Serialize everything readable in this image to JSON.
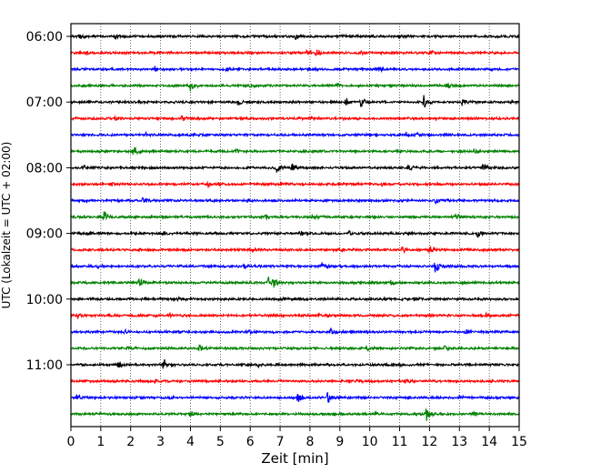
{
  "chart_data": {
    "type": "line",
    "xlabel": "Zeit  [min]",
    "ylabel": "UTC (Lokalzeit = UTC + 02:00)",
    "xlim": [
      0,
      15
    ],
    "x_ticks": [
      0,
      1,
      2,
      3,
      4,
      5,
      6,
      7,
      8,
      9,
      10,
      11,
      12,
      13,
      14,
      15
    ],
    "y_tick_labels": [
      "06:00",
      "07:00",
      "08:00",
      "09:00",
      "10:00",
      "11:00"
    ],
    "y_tick_rows": [
      0,
      4,
      8,
      12,
      16,
      20
    ],
    "grid": "x",
    "line_colors": [
      "#000000",
      "#ff0000",
      "#0000ff",
      "#008000"
    ],
    "traces": [
      {
        "start": "06:00",
        "events": [
          [
            0.3,
            0.3
          ],
          [
            1.5,
            0.3
          ],
          [
            7.5,
            0.4
          ],
          [
            9.1,
            0.3
          ],
          [
            11.0,
            0.3
          ]
        ]
      },
      {
        "start": "06:15",
        "events": [
          [
            0.5,
            0.3
          ],
          [
            7.9,
            0.6
          ],
          [
            8.2,
            0.6
          ],
          [
            9.7,
            0.3
          ],
          [
            12.0,
            0.3
          ]
        ]
      },
      {
        "start": "06:30",
        "events": [
          [
            2.8,
            0.3
          ],
          [
            5.2,
            0.2
          ],
          [
            10.3,
            0.3
          ]
        ]
      },
      {
        "start": "06:45",
        "events": [
          [
            4.0,
            1.0
          ],
          [
            6.0,
            0.3
          ],
          [
            8.9,
            0.3
          ],
          [
            12.6,
            0.3
          ]
        ]
      },
      {
        "start": "07:00",
        "events": [
          [
            5.6,
            0.7
          ],
          [
            9.2,
            0.6
          ],
          [
            9.7,
            0.7
          ],
          [
            11.8,
            0.9
          ],
          [
            13.1,
            0.5
          ]
        ]
      },
      {
        "start": "07:15",
        "events": [
          [
            1.5,
            0.3
          ],
          [
            3.7,
            0.4
          ],
          [
            8.0,
            0.2
          ]
        ]
      },
      {
        "start": "07:30",
        "events": [
          [
            2.5,
            0.2
          ],
          [
            11.2,
            0.4
          ],
          [
            11.6,
            0.3
          ]
        ]
      },
      {
        "start": "07:45",
        "events": [
          [
            2.1,
            0.9
          ],
          [
            5.5,
            0.3
          ],
          [
            13.5,
            0.3
          ]
        ]
      },
      {
        "start": "08:00",
        "events": [
          [
            0.4,
            0.2
          ],
          [
            6.9,
            0.7
          ],
          [
            7.4,
            0.7
          ],
          [
            11.3,
            0.3
          ],
          [
            13.8,
            0.8
          ]
        ]
      },
      {
        "start": "08:15",
        "events": [
          [
            1.4,
            0.3
          ],
          [
            4.6,
            0.4
          ],
          [
            7.0,
            0.3
          ],
          [
            10.4,
            0.3
          ]
        ]
      },
      {
        "start": "08:30",
        "events": [
          [
            2.4,
            0.4
          ],
          [
            5.9,
            0.2
          ],
          [
            12.2,
            0.3
          ]
        ]
      },
      {
        "start": "08:45",
        "events": [
          [
            1.1,
            0.9
          ],
          [
            2.7,
            0.3
          ],
          [
            6.5,
            0.3
          ],
          [
            8.1,
            0.5
          ],
          [
            12.9,
            0.5
          ]
        ]
      },
      {
        "start": "09:00",
        "events": [
          [
            0.6,
            0.3
          ],
          [
            3.1,
            0.4
          ],
          [
            7.7,
            0.3
          ],
          [
            9.3,
            0.3
          ],
          [
            13.6,
            0.5
          ]
        ]
      },
      {
        "start": "09:15",
        "events": [
          [
            1.3,
            0.3
          ],
          [
            6.0,
            0.3
          ],
          [
            9.0,
            0.3
          ],
          [
            11.1,
            0.6
          ],
          [
            12.0,
            0.5
          ]
        ]
      },
      {
        "start": "09:30",
        "events": [
          [
            0.9,
            0.2
          ],
          [
            5.8,
            0.3
          ],
          [
            8.4,
            0.3
          ],
          [
            12.2,
            1.0
          ]
        ]
      },
      {
        "start": "09:45",
        "events": [
          [
            2.3,
            0.7
          ],
          [
            6.6,
            0.7
          ],
          [
            6.8,
            0.5
          ],
          [
            10.7,
            0.3
          ]
        ]
      },
      {
        "start": "10:00",
        "events": [
          [
            3.6,
            0.2
          ],
          [
            7.1,
            0.2
          ],
          [
            11.5,
            0.2
          ]
        ]
      },
      {
        "start": "10:15",
        "events": [
          [
            0.2,
            0.4
          ],
          [
            3.3,
            0.3
          ],
          [
            8.3,
            0.3
          ],
          [
            13.9,
            0.3
          ]
        ]
      },
      {
        "start": "10:30",
        "events": [
          [
            1.8,
            0.2
          ],
          [
            5.9,
            0.4
          ],
          [
            8.7,
            0.4
          ],
          [
            13.2,
            0.3
          ]
        ]
      },
      {
        "start": "10:45",
        "events": [
          [
            1.9,
            0.3
          ],
          [
            4.3,
            0.6
          ],
          [
            9.9,
            0.3
          ],
          [
            12.5,
            0.3
          ]
        ]
      },
      {
        "start": "11:00",
        "events": [
          [
            1.6,
            0.4
          ],
          [
            3.1,
            0.8
          ],
          [
            6.2,
            0.3
          ],
          [
            11.0,
            0.3
          ]
        ]
      },
      {
        "start": "11:15",
        "events": [
          [
            2.8,
            0.2
          ],
          [
            9.6,
            0.3
          ],
          [
            11.2,
            0.3
          ]
        ]
      },
      {
        "start": "11:30",
        "events": [
          [
            0.2,
            0.4
          ],
          [
            3.3,
            0.3
          ],
          [
            7.6,
            0.7
          ],
          [
            8.6,
            1.0
          ],
          [
            13.0,
            0.3
          ]
        ]
      },
      {
        "start": "11:45",
        "events": [
          [
            4.0,
            0.4
          ],
          [
            10.2,
            0.3
          ],
          [
            11.9,
            0.9
          ],
          [
            13.5,
            0.3
          ]
        ]
      }
    ]
  }
}
